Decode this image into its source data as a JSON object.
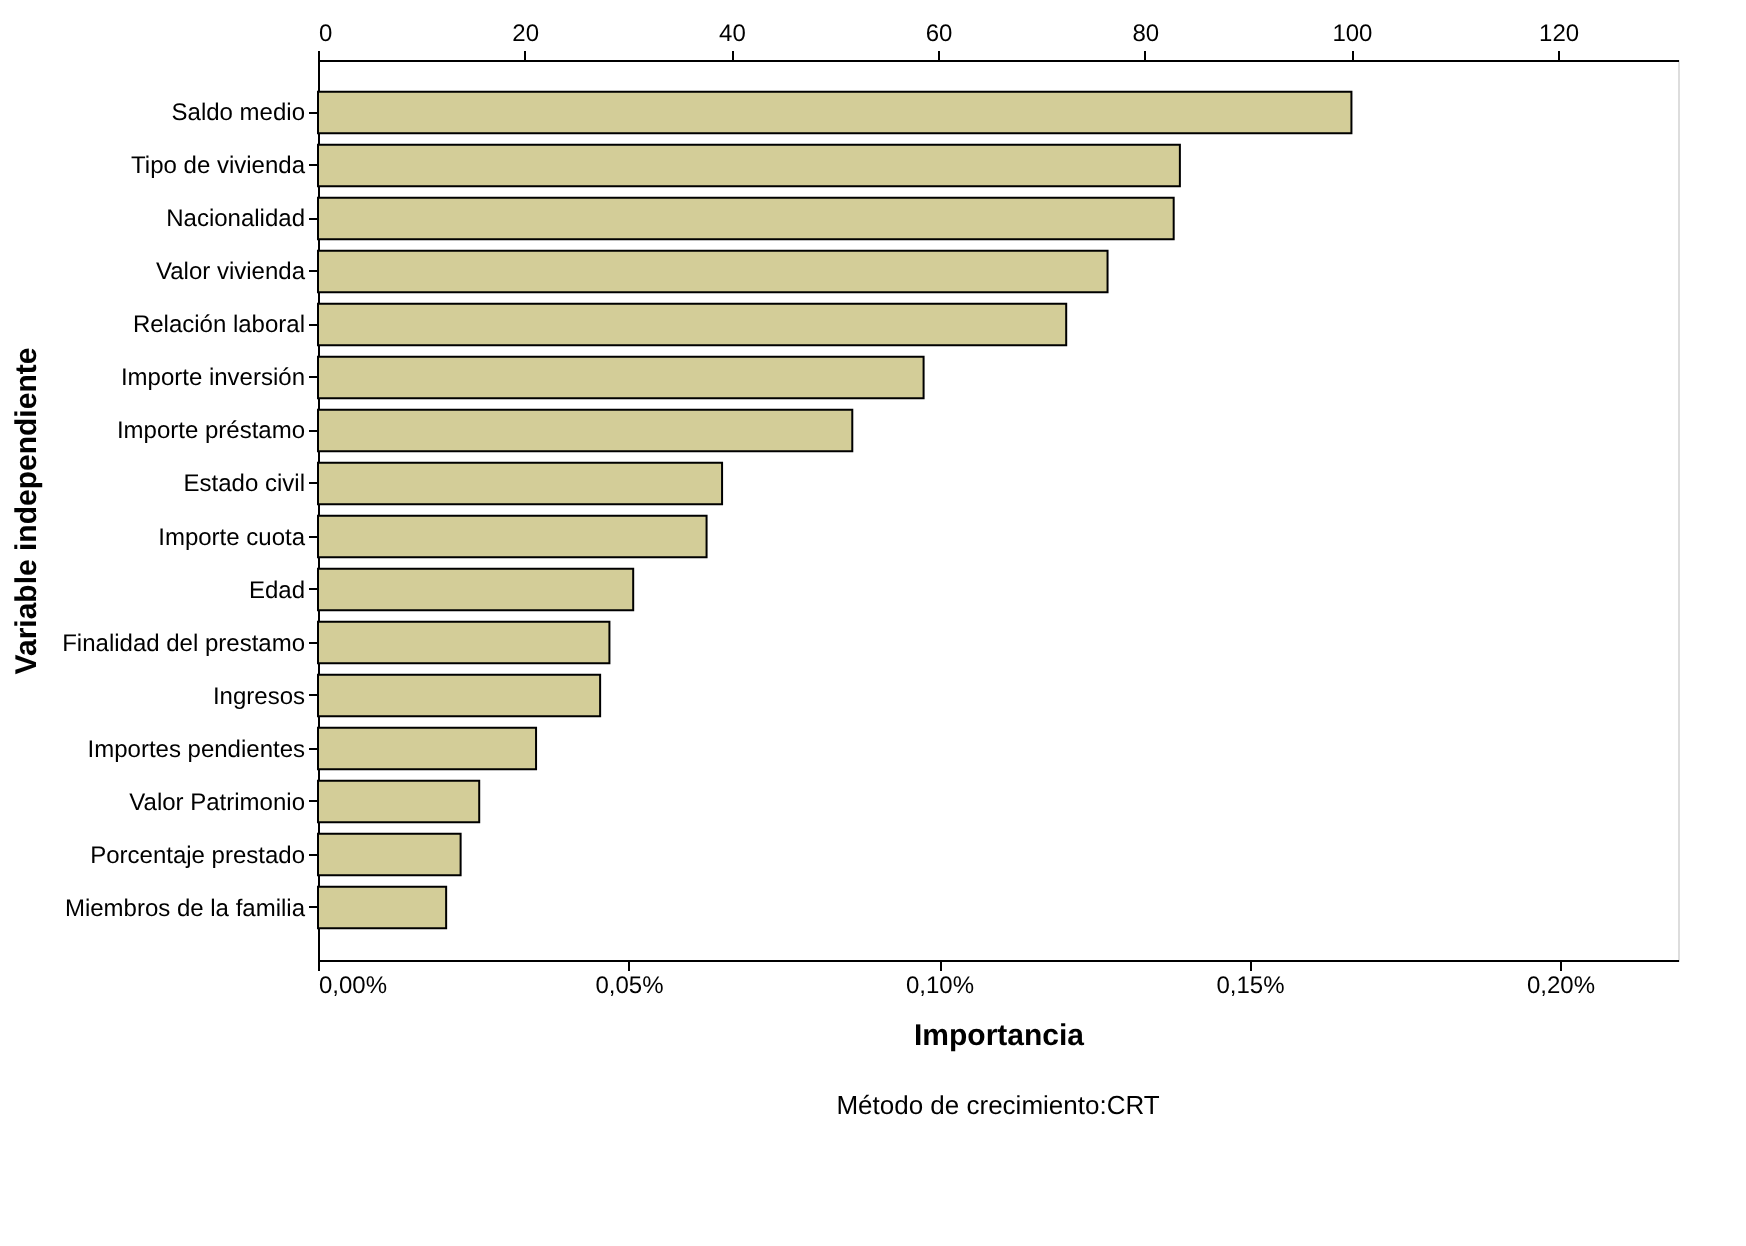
{
  "chart_data": {
    "type": "bar",
    "orientation": "horizontal",
    "xlabel": "Importancia",
    "ylabel": "Variable independiente",
    "annotations": [
      "Método de crecimiento:CRT"
    ],
    "categories": [
      "Saldo medio",
      "Tipo de vivienda",
      "Nacionalidad",
      "Valor vivienda",
      "Relación laboral",
      "Importe inversión",
      "Importe préstamo",
      "Estado civil",
      "Importe cuota",
      "Edad",
      "Finalidad del prestamo",
      "Ingresos",
      "Importes pendientes",
      "Valor Patrimonio",
      "Porcentaje prestado",
      "Miembros de la familia"
    ],
    "series": [
      {
        "color": "#d3cd98",
        "axis": "x2",
        "values": [
          100,
          83.4,
          82.8,
          76.4,
          72.4,
          58.6,
          51.7,
          39.1,
          37.6,
          30.5,
          28.2,
          27.3,
          21.1,
          15.6,
          13.8,
          12.4
        ]
      }
    ],
    "xlim": [
      0,
      0.219
    ],
    "xticks": [
      {
        "value": 0,
        "label": "0,00%"
      },
      {
        "value": 0.05,
        "label": "0,05%"
      },
      {
        "value": 0.1,
        "label": "0,10%"
      },
      {
        "value": 0.15,
        "label": "0,15%"
      },
      {
        "value": 0.2,
        "label": "0,20%"
      }
    ],
    "x2lim": [
      0,
      131.6
    ],
    "x2ticks": [
      0,
      20,
      40,
      60,
      80,
      100,
      120
    ],
    "grid": false
  }
}
